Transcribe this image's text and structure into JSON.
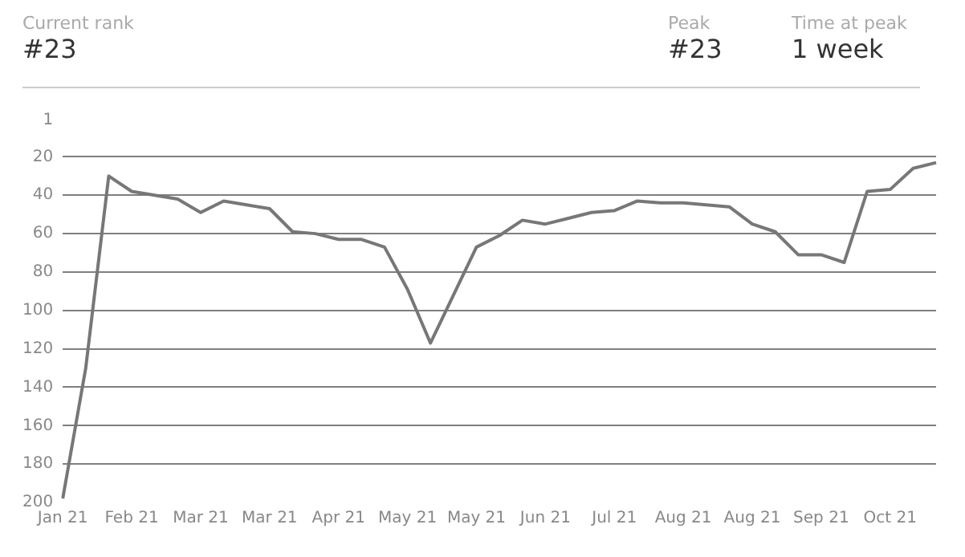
{
  "chart_data": {
    "type": "line",
    "annotations": [
      "Current rank",
      "#23",
      "Peak",
      "#23",
      "Time at peak",
      "1 week"
    ],
    "categories": [
      "Jan 21",
      null,
      null,
      "Feb 21",
      null,
      null,
      "Mar 21",
      null,
      null,
      "Mar 21",
      null,
      null,
      "Apr 21",
      null,
      null,
      "May 21",
      null,
      null,
      "May 21",
      null,
      null,
      "Jun 21",
      null,
      null,
      "Jul 21",
      null,
      null,
      "Aug 21",
      null,
      null,
      "Aug 21",
      null,
      null,
      "Sep 21",
      null,
      null,
      "Oct 21",
      null,
      null
    ],
    "series": [
      {
        "color": "#777777",
        "values": [
          198,
          130,
          30,
          38,
          40,
          42,
          49,
          43,
          45,
          47,
          59,
          60,
          63,
          63,
          67,
          89,
          117,
          92,
          67,
          61,
          53,
          55,
          52,
          49,
          48,
          43,
          44,
          44,
          45,
          46,
          55,
          59,
          71,
          71,
          75,
          38,
          37,
          26,
          23
        ]
      }
    ],
    "ylim": [
      200,
      1
    ],
    "yticks": [
      1,
      20,
      40,
      60,
      80,
      100,
      120,
      140,
      160,
      180,
      200
    ],
    "grid": "y",
    "line_style": "solid",
    "marker": "none",
    "legend": false
  }
}
